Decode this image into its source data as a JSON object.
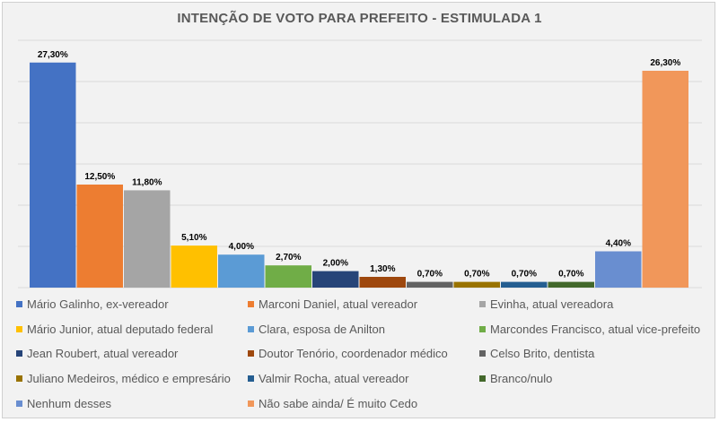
{
  "colors": {
    "background": "#f2f2f2",
    "grid": "#d9d9d9"
  },
  "chart_data": {
    "type": "bar",
    "title": "INTENÇÃO DE VOTO PARA PREFEITO - ESTIMULADA 1",
    "xlabel": "",
    "ylabel": "",
    "ylim": [
      0,
      30
    ],
    "grid": true,
    "legend_position": "bottom",
    "categories": [
      "Mário Galinho, ex-vereador",
      "Marconi Daniel, atual vereador",
      "Evinha, atual vereadora",
      "Mário Junior, atual deputado federal",
      "Clara, esposa de Anilton",
      "Marcondes Francisco, atual vice-prefeito",
      "Jean Roubert, atual vereador",
      "Doutor Tenório, coordenador médico",
      "Celso Brito, dentista",
      "Juliano Medeiros, médico e empresário",
      "Valmir Rocha, atual vereador",
      "Branco/nulo",
      "Nenhum desses",
      "Não sabe ainda/ É muito Cedo"
    ],
    "values": [
      27.3,
      12.5,
      11.8,
      5.1,
      4.0,
      2.7,
      2.0,
      1.3,
      0.7,
      0.7,
      0.7,
      0.7,
      4.4,
      26.3
    ],
    "labels": [
      "27,30%",
      "12,50%",
      "11,80%",
      "5,10%",
      "4,00%",
      "2,70%",
      "2,00%",
      "1,30%",
      "0,70%",
      "0,70%",
      "0,70%",
      "0,70%",
      "4,40%",
      "26,30%"
    ],
    "colors": [
      "#4472c4",
      "#ed7d31",
      "#a5a5a5",
      "#ffc000",
      "#5b9bd5",
      "#70ad47",
      "#264478",
      "#9e480e",
      "#636363",
      "#997300",
      "#255e91",
      "#43682b",
      "#698ed0",
      "#f1975a"
    ]
  }
}
